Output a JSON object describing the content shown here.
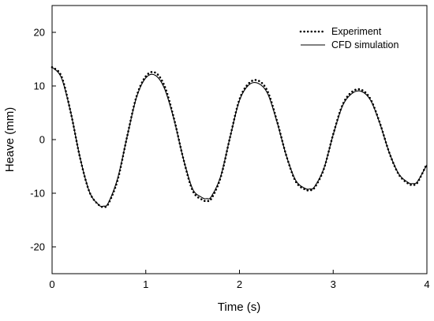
{
  "chart_data": {
    "type": "line",
    "title": "",
    "xlabel": "Time (s)",
    "ylabel": "Heave (mm)",
    "xlim": [
      0,
      4
    ],
    "ylim": [
      -25,
      25
    ],
    "xticks": [
      0,
      1,
      2,
      3,
      4
    ],
    "yticks": [
      -20,
      -10,
      0,
      10,
      20
    ],
    "grid": false,
    "legend_position": "top-right",
    "series": [
      {
        "name": "Experiment",
        "style": "dotted",
        "x": [
          0,
          0.1,
          0.2,
          0.3,
          0.4,
          0.5,
          0.55,
          0.6,
          0.7,
          0.8,
          0.9,
          1.0,
          1.1,
          1.2,
          1.3,
          1.4,
          1.5,
          1.6,
          1.65,
          1.7,
          1.8,
          1.9,
          2.0,
          2.1,
          2.2,
          2.3,
          2.4,
          2.5,
          2.6,
          2.7,
          2.75,
          2.8,
          2.9,
          3.0,
          3.1,
          3.2,
          3.3,
          3.4,
          3.5,
          3.6,
          3.7,
          3.8,
          3.85,
          3.9,
          4.0
        ],
        "y": [
          13.5,
          11.8,
          5.0,
          -3.5,
          -9.8,
          -12.2,
          -12.5,
          -12.0,
          -7.5,
          0.5,
          8.0,
          11.8,
          12.5,
          10.0,
          4.0,
          -3.5,
          -9.5,
          -11.2,
          -11.4,
          -11.0,
          -7.0,
          0.5,
          7.5,
          10.5,
          11.0,
          9.0,
          3.5,
          -3.0,
          -7.8,
          -9.3,
          -9.4,
          -9.0,
          -5.5,
          1.0,
          6.5,
          8.9,
          9.3,
          7.5,
          3.0,
          -2.5,
          -6.5,
          -8.2,
          -8.4,
          -8.0,
          -4.5
        ]
      },
      {
        "name": "CFD simulation",
        "style": "solid",
        "x": [
          0,
          0.1,
          0.2,
          0.3,
          0.4,
          0.5,
          0.55,
          0.6,
          0.7,
          0.8,
          0.9,
          1.0,
          1.1,
          1.2,
          1.3,
          1.4,
          1.5,
          1.6,
          1.65,
          1.7,
          1.8,
          1.9,
          2.0,
          2.1,
          2.2,
          2.3,
          2.4,
          2.5,
          2.6,
          2.7,
          2.75,
          2.8,
          2.9,
          3.0,
          3.1,
          3.2,
          3.3,
          3.4,
          3.5,
          3.6,
          3.7,
          3.8,
          3.85,
          3.9,
          4.0
        ],
        "y": [
          13.5,
          11.5,
          5.0,
          -3.5,
          -9.8,
          -12.2,
          -12.4,
          -11.8,
          -7.2,
          0.5,
          7.8,
          11.5,
          12.0,
          9.5,
          3.8,
          -3.5,
          -9.2,
          -10.8,
          -11.0,
          -10.6,
          -6.8,
          0.5,
          7.3,
          10.2,
          10.5,
          8.6,
          3.3,
          -3.0,
          -7.6,
          -9.1,
          -9.2,
          -8.8,
          -5.4,
          0.9,
          6.3,
          8.6,
          9.0,
          7.3,
          2.9,
          -2.5,
          -6.4,
          -8.0,
          -8.2,
          -7.8,
          -4.7
        ]
      }
    ]
  }
}
